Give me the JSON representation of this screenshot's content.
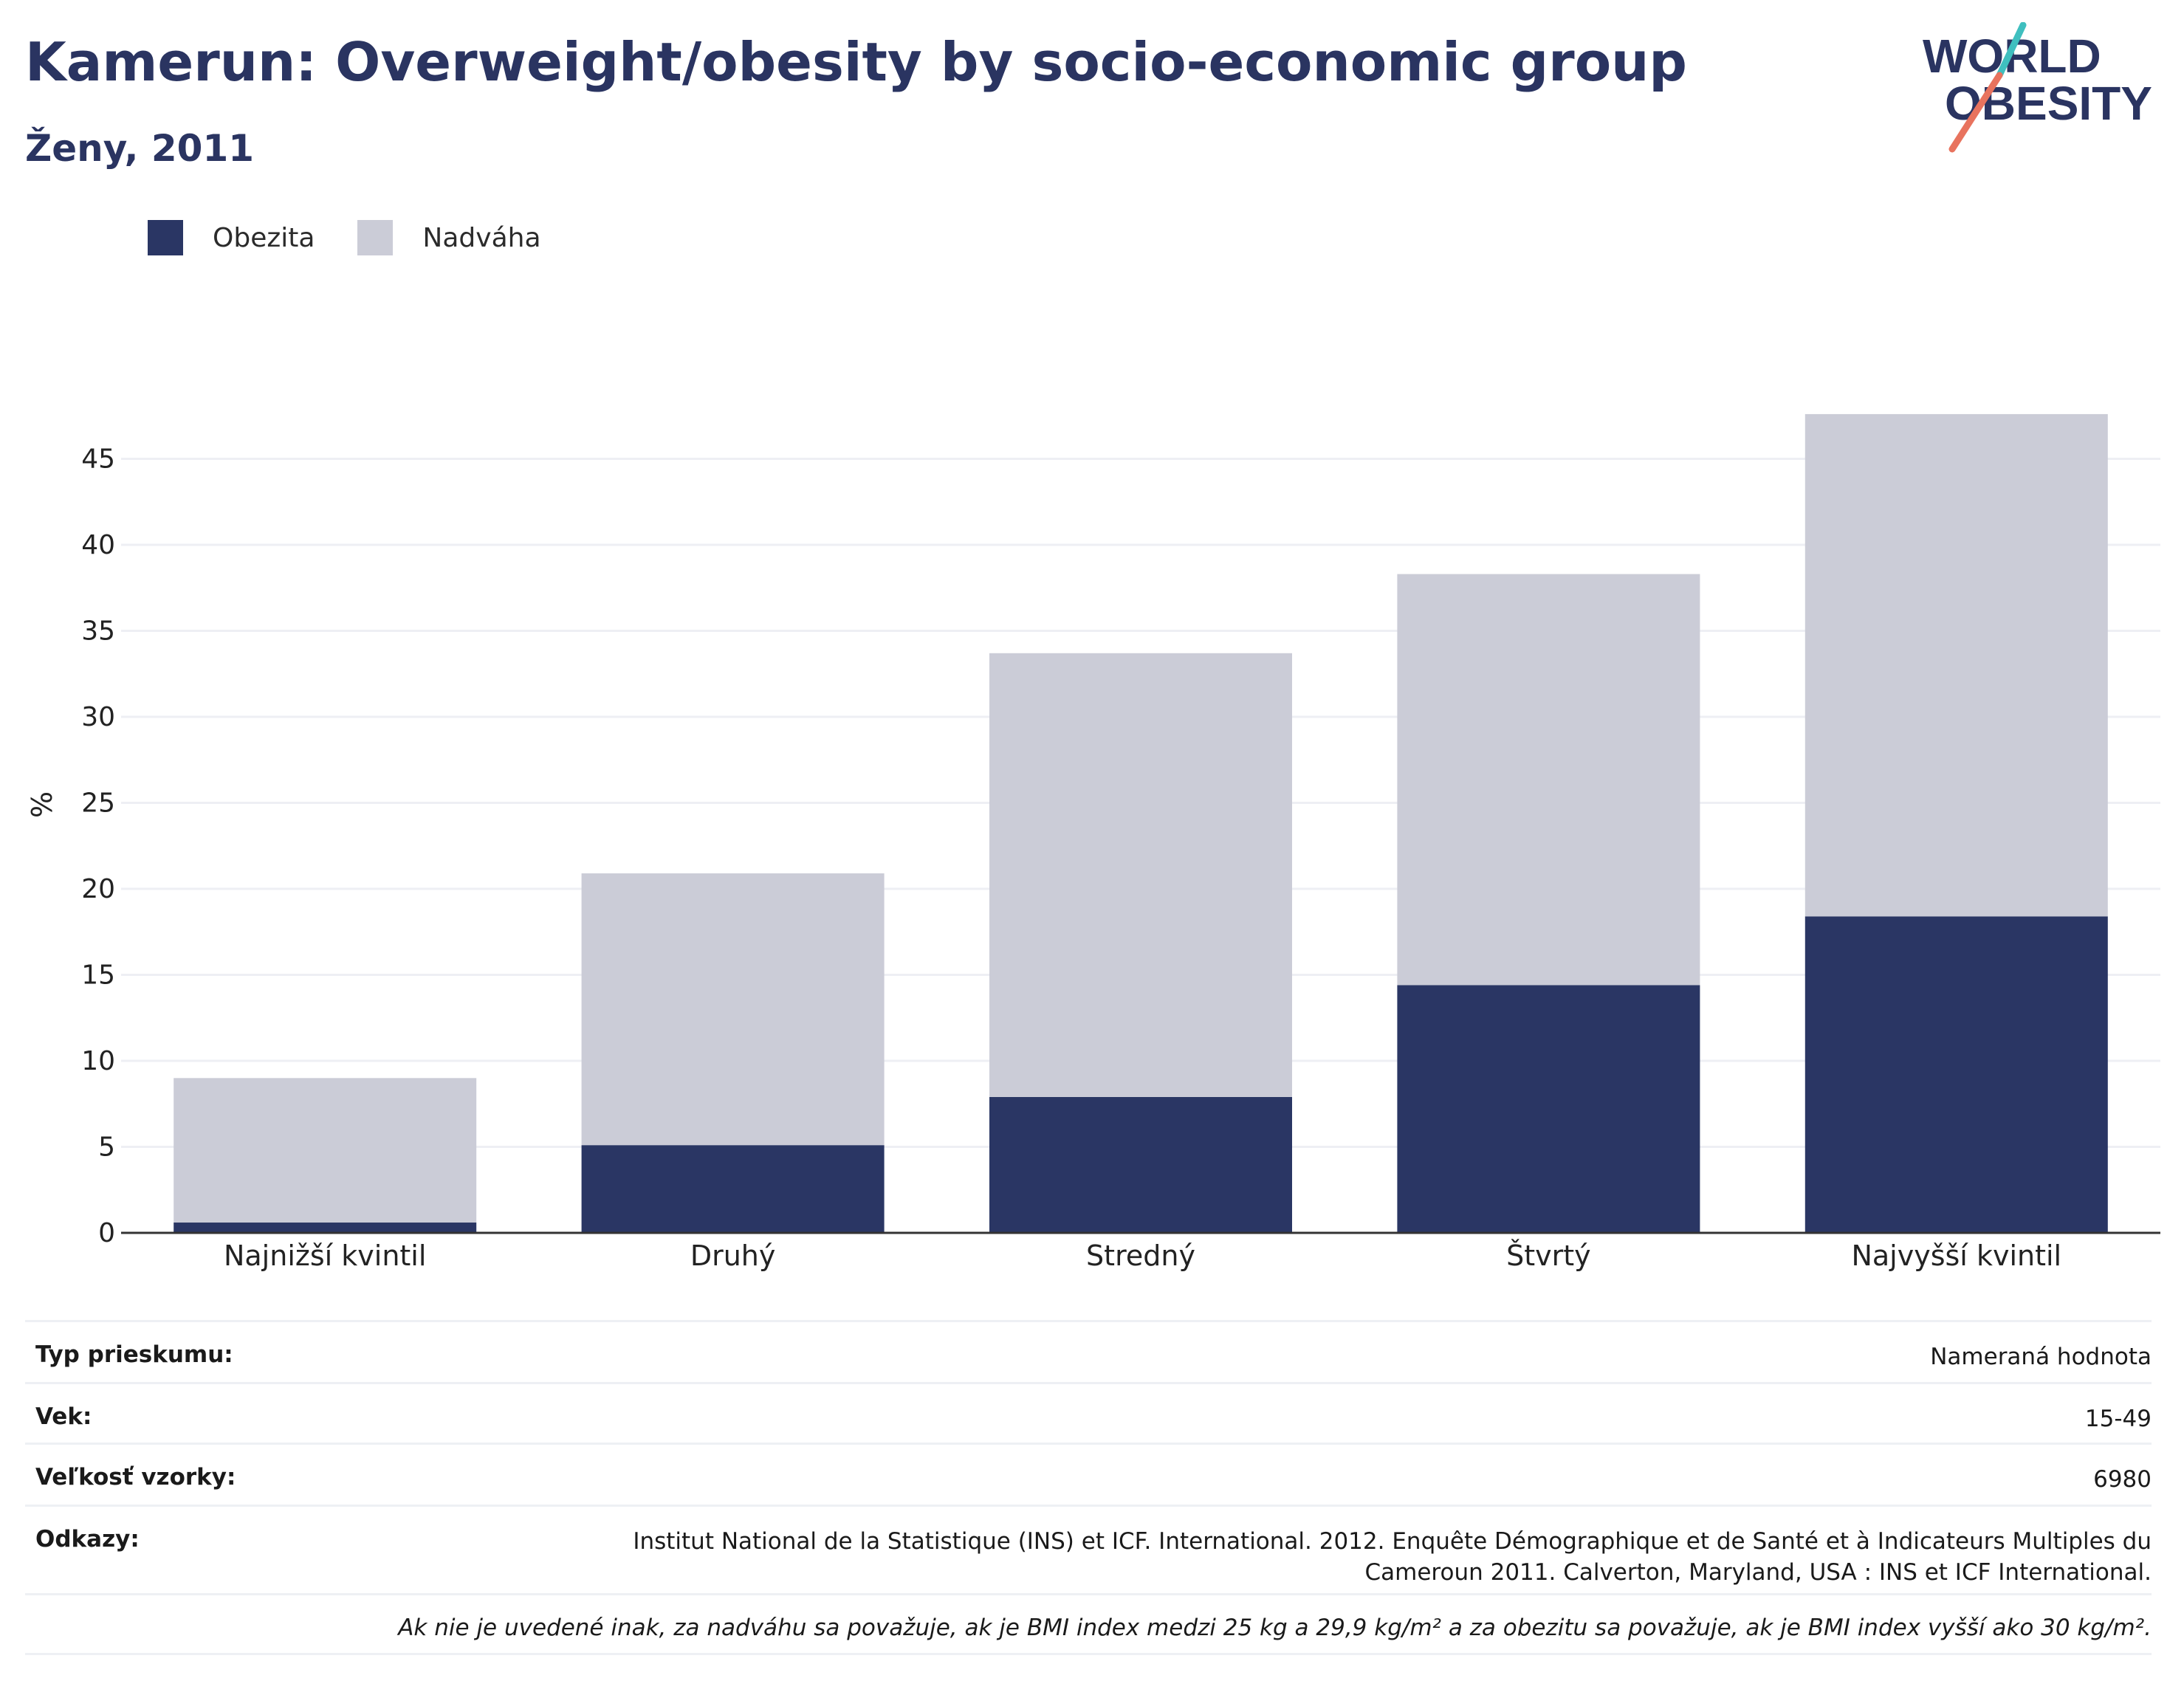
{
  "title": "Kamerun: Overweight/obesity by socio-economic group",
  "subtitle": "Ženy, 2011",
  "logo": {
    "line1": "WORLD",
    "line2": "OBESITY"
  },
  "colors": {
    "obesity": "#2a3664",
    "overweight": "#cbccd7",
    "text": "#2a3461",
    "grid": "#eeeff4",
    "axis": "#333333"
  },
  "legend": [
    {
      "label": "Obezita",
      "color": "#2a3664"
    },
    {
      "label": "Nadváha",
      "color": "#cbccd7"
    }
  ],
  "chart_data": {
    "type": "bar",
    "stacked": true,
    "categories": [
      "Najnižší kvintil",
      "Druhý",
      "Stredný",
      "Štvrtý",
      "Najvyšší kvintil"
    ],
    "series": [
      {
        "name": "Obezita",
        "values": [
          0.6,
          5.1,
          7.9,
          14.4,
          18.4
        ]
      },
      {
        "name": "Nadváha",
        "values": [
          8.4,
          15.8,
          25.8,
          23.9,
          29.2
        ]
      }
    ],
    "ylabel": "%",
    "ylim": [
      0,
      48
    ],
    "yticks": [
      0,
      5,
      10,
      15,
      20,
      25,
      30,
      35,
      40,
      45
    ],
    "grid": true,
    "legend_position": "top-left"
  },
  "meta": [
    {
      "label": "Typ prieskumu:",
      "value": "Nameraná hodnota"
    },
    {
      "label": "Vek:",
      "value": "15-49"
    },
    {
      "label": "Veľkosť vzorky:",
      "value": "6980"
    },
    {
      "label": "Odkazy:",
      "value_lines": [
        "Institut National de la Statistique (INS) et ICF. International. 2012. Enquête Démographique et de Santé et à Indicateurs Multiples du",
        "Cameroun 2011. Calverton, Maryland, USA : INS et ICF International."
      ]
    }
  ],
  "footnote": "Ak nie je uvedené inak, za nadváhu sa považuje, ak je BMI index medzi 25 kg a 29,9 kg/m² a za obezitu sa považuje, ak je BMI index vyšší ako 30 kg/m²."
}
